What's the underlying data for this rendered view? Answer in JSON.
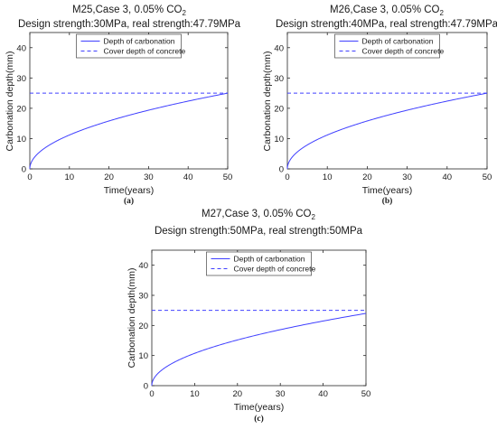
{
  "chart_data": [
    {
      "type": "line",
      "title_line1_main": "M25,Case 3, 0.05% CO",
      "title_line1_sub": "2",
      "title_line2": "Design strength:30MPa, real strength:47.79MPa",
      "xlabel": "Time(years)",
      "ylabel": "Carbonation depth(mm)",
      "panel_label": "(a)",
      "xlim": [
        0,
        50
      ],
      "ylim": [
        0,
        45
      ],
      "xticks": [
        "0",
        "10",
        "20",
        "30",
        "40",
        "50"
      ],
      "yticks": [
        "0",
        "10",
        "20",
        "30",
        "40"
      ],
      "legend_position": "top-center",
      "grid": false,
      "series": [
        {
          "name": "Depth of carbonation",
          "style": "solid",
          "color": "#4040ff",
          "model": "sqrt",
          "x": [
            0,
            1,
            5,
            10,
            20,
            30,
            40,
            50
          ],
          "y": [
            0,
            3.5,
            7.9,
            11.2,
            15.8,
            19.4,
            22.4,
            25.0
          ]
        },
        {
          "name": "Cover depth of concrete",
          "style": "dashed",
          "color": "#4040ff",
          "model": "const",
          "x": [
            0,
            50
          ],
          "y": [
            25,
            25
          ]
        }
      ]
    },
    {
      "type": "line",
      "title_line1_main": "M26,Case 3, 0.05% CO",
      "title_line1_sub": "2",
      "title_line2": "Design strength:40MPa, real strength:47.79MPa",
      "xlabel": "Time(years)",
      "ylabel": "Carbonation depth(mm)",
      "panel_label": "(b)",
      "xlim": [
        0,
        50
      ],
      "ylim": [
        0,
        45
      ],
      "xticks": [
        "0",
        "10",
        "20",
        "30",
        "40",
        "50"
      ],
      "yticks": [
        "0",
        "10",
        "20",
        "30",
        "40"
      ],
      "legend_position": "top-center",
      "grid": false,
      "series": [
        {
          "name": "Depth of carbonation",
          "style": "solid",
          "color": "#4040ff",
          "model": "sqrt",
          "x": [
            0,
            1,
            5,
            10,
            20,
            30,
            40,
            50
          ],
          "y": [
            0,
            3.5,
            7.9,
            11.2,
            15.8,
            19.4,
            22.4,
            25.0
          ]
        },
        {
          "name": "Cover depth of concrete",
          "style": "dashed",
          "color": "#4040ff",
          "model": "const",
          "x": [
            0,
            50
          ],
          "y": [
            25,
            25
          ]
        }
      ]
    },
    {
      "type": "line",
      "title_line1_main": "M27,Case 3, 0.05% CO",
      "title_line1_sub": "2",
      "title_line2": "Design strength:50MPa, real strength:50MPa",
      "xlabel": "Time(years)",
      "ylabel": "Carbonation depth(mm)",
      "panel_label": "(c)",
      "xlim": [
        0,
        50
      ],
      "ylim": [
        0,
        45
      ],
      "xticks": [
        "0",
        "10",
        "20",
        "30",
        "40",
        "50"
      ],
      "yticks": [
        "0",
        "10",
        "20",
        "30",
        "40"
      ],
      "legend_position": "top-center",
      "grid": false,
      "series": [
        {
          "name": "Depth of carbonation",
          "style": "solid",
          "color": "#4040ff",
          "model": "sqrt",
          "x": [
            0,
            1,
            5,
            10,
            20,
            30,
            40,
            50
          ],
          "y": [
            0,
            3.4,
            7.6,
            10.7,
            15.2,
            18.6,
            21.5,
            24.0
          ]
        },
        {
          "name": "Cover depth of concrete",
          "style": "dashed",
          "color": "#4040ff",
          "model": "const",
          "x": [
            0,
            50
          ],
          "y": [
            25,
            25
          ]
        }
      ]
    }
  ]
}
